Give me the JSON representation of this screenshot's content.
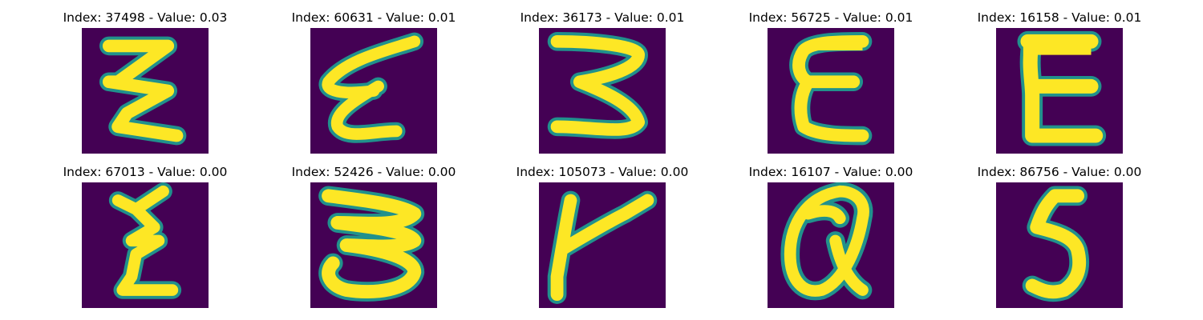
{
  "colors": {
    "background": "#440154",
    "edge": "#21918c",
    "mid": "#5ec962",
    "stroke": "#fde725"
  },
  "panels": [
    {
      "index": "37498",
      "value": "0.03",
      "title": "Index: 37498 - Value: 0.03",
      "glyph": "zigzag-three-stroke"
    },
    {
      "index": "60631",
      "value": "0.01",
      "title": "Index: 60631 - Value: 0.01",
      "glyph": "slanted-epsilon"
    },
    {
      "index": "36173",
      "value": "0.01",
      "title": "Index: 36173 - Value: 0.01",
      "glyph": "three"
    },
    {
      "index": "56725",
      "value": "0.01",
      "title": "Index: 56725 - Value: 0.01",
      "glyph": "epsilon"
    },
    {
      "index": "16158",
      "value": "0.01",
      "title": "Index: 16158 - Value: 0.01",
      "glyph": "capital-e"
    },
    {
      "index": "67013",
      "value": "0.00",
      "title": "Index: 67013 - Value: 0.00",
      "glyph": "narrow-zigzag"
    },
    {
      "index": "52426",
      "value": "0.00",
      "title": "Index: 52426 - Value: 0.00",
      "glyph": "wide-three"
    },
    {
      "index": "105073",
      "value": "0.00",
      "title": "Index: 105073 - Value: 0.00",
      "glyph": "r-like"
    },
    {
      "index": "16107",
      "value": "0.00",
      "title": "Index: 16107 - Value: 0.00",
      "glyph": "a-like"
    },
    {
      "index": "86756",
      "value": "0.00",
      "title": "Index: 86756 - Value: 0.00",
      "glyph": "five"
    }
  ]
}
